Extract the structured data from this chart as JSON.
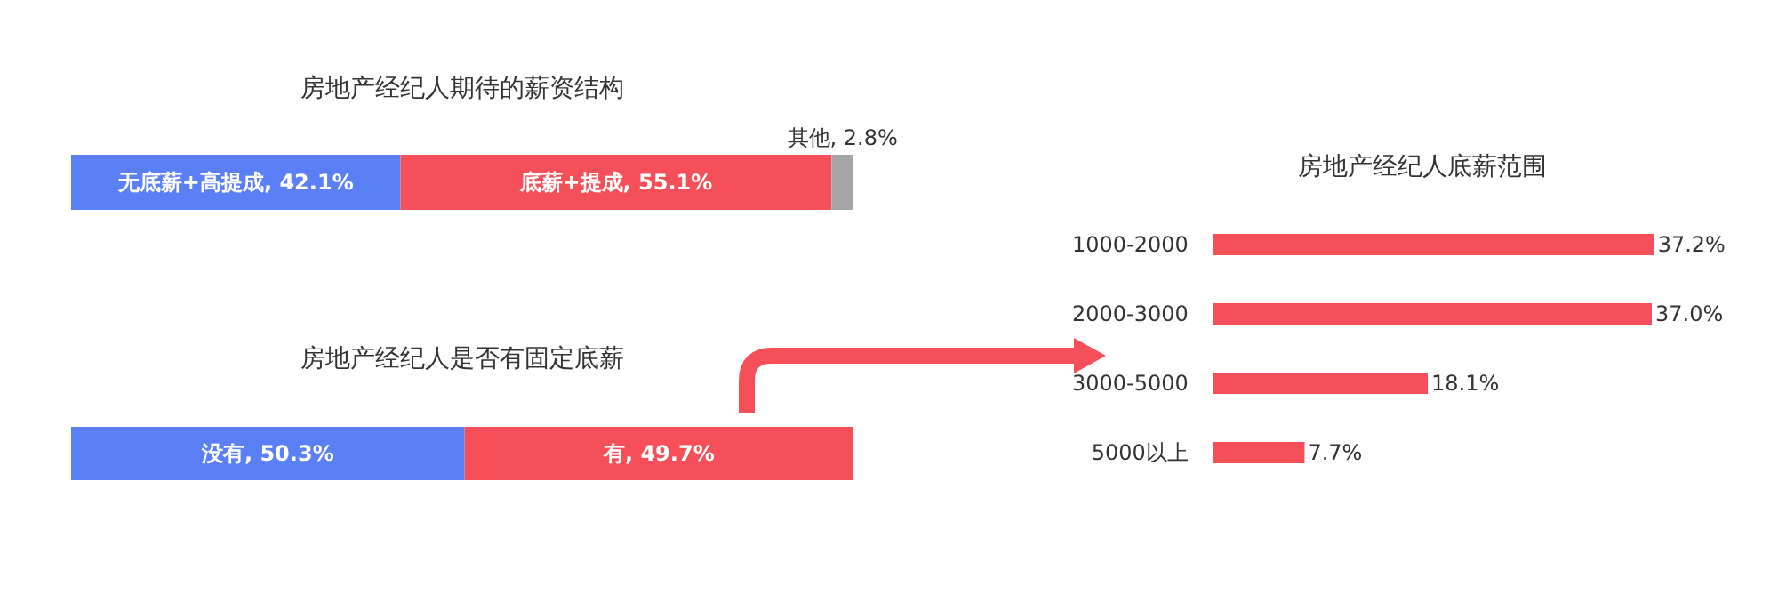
{
  "chart_data": [
    {
      "type": "bar",
      "title": "房地产经纪人期待的薪资结构",
      "orientation": "horizontal",
      "stacked": true,
      "categories": [
        null
      ],
      "xlim": [
        0,
        100
      ],
      "tick_labels": false,
      "series": [
        {
          "color": "#5b7ff5",
          "values": [
            42.1
          ],
          "value_labels": [
            "无底薪+高提成, 42.1%"
          ]
        },
        {
          "color": "#f5505a",
          "values": [
            55.1
          ],
          "value_labels": [
            "底薪+提成, 55.1%"
          ]
        },
        {
          "color": "#a6a6a6",
          "values": [
            2.8
          ],
          "value_labels": [
            "其他, 2.8%"
          ]
        }
      ]
    },
    {
      "type": "bar",
      "title": "房地产经纪人是否有固定底薪",
      "orientation": "horizontal",
      "stacked": true,
      "categories": [
        null
      ],
      "xlim": [
        0,
        100
      ],
      "tick_labels": false,
      "series": [
        {
          "color": "#5b7ff5",
          "values": [
            50.3
          ],
          "value_labels": [
            "没有, 50.3%"
          ]
        },
        {
          "color": "#f5505a",
          "values": [
            49.7
          ],
          "value_labels": [
            "有, 49.7%"
          ]
        }
      ]
    },
    {
      "type": "bar",
      "title": "房地产经纪人底薪范围",
      "orientation": "horizontal",
      "categories": [
        "1000-2000",
        "2000-3000",
        "3000-5000",
        "5000以上"
      ],
      "tick_labels": "y",
      "series": [
        {
          "color": "#f5505a",
          "values": [
            37.2,
            37.0,
            18.1,
            7.7
          ],
          "value_labels": [
            "37.2%",
            "37.0%",
            "18.1%",
            "7.7%"
          ]
        }
      ]
    }
  ]
}
